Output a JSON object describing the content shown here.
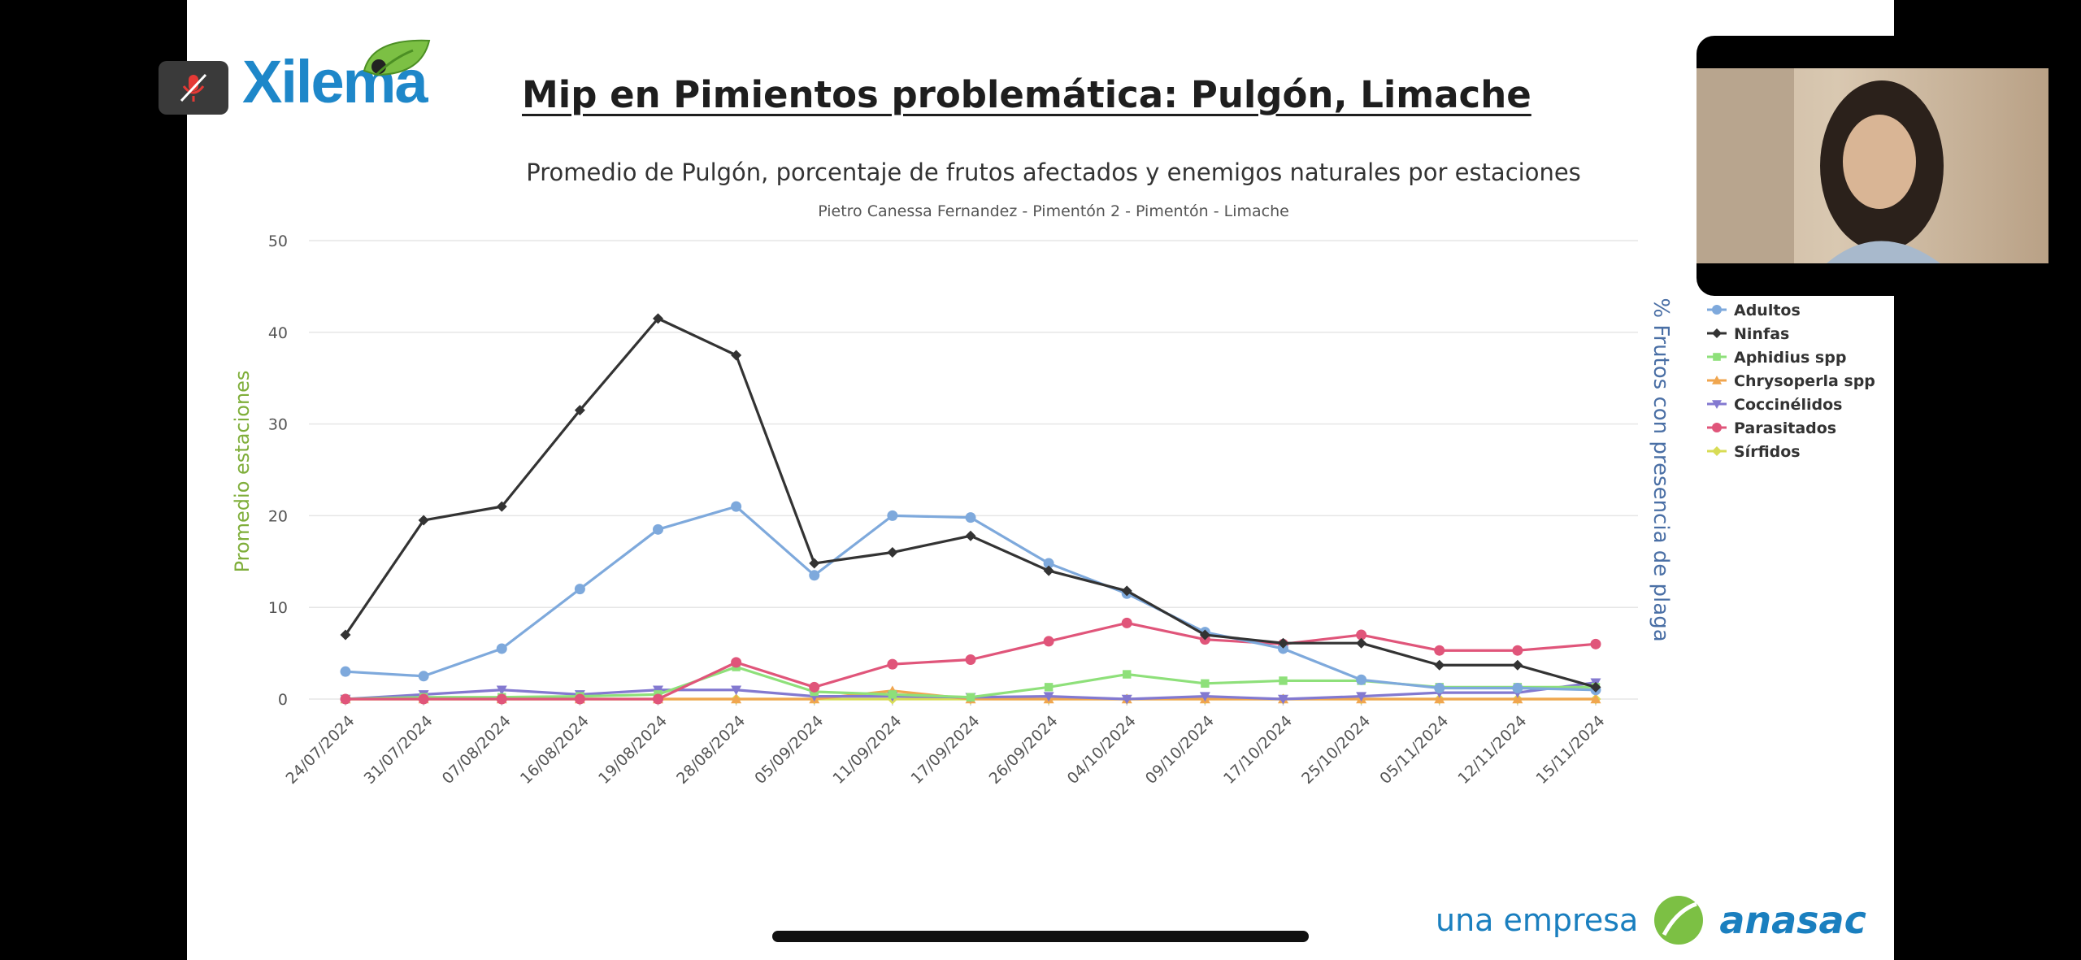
{
  "slide": {
    "title": "Mip en Pimientos problemática: Pulgón, Limache",
    "logo_text": "Xilema",
    "footer_prefix": "una empresa",
    "footer_brand": "anasac"
  },
  "colors": {
    "background": "#000000",
    "slide": "#ffffff",
    "title": "#1e1e1e",
    "logo_blue": "#1e87c9",
    "brand_blue": "#1a7fbf",
    "left_axis_label": "#7fae3a",
    "right_axis_label": "#4a6fa5"
  },
  "icons": {
    "mute": "muted-microphone-icon",
    "logo_leaf": "leaf-icon",
    "brand_leaf": "leaf-icon"
  },
  "chart_data": {
    "type": "line",
    "title": "Promedio de Pulgón, porcentaje de frutos afectados y enemigos naturales por estaciones",
    "subtitle": "Pietro Canessa Fernandez - Pimentón 2 - Pimentón - Limache",
    "ylabel": "Promedio estaciones",
    "y2label": "% Frutos con presencia de plaga",
    "ylim": [
      0,
      50
    ],
    "yticks": [
      0,
      10,
      20,
      30,
      40,
      50
    ],
    "grid": true,
    "legend_position": "right",
    "categories": [
      "24/07/2024",
      "31/07/2024",
      "07/08/2024",
      "16/08/2024",
      "19/08/2024",
      "28/08/2024",
      "05/09/2024",
      "11/09/2024",
      "17/09/2024",
      "26/09/2024",
      "04/10/2024",
      "09/10/2024",
      "17/10/2024",
      "25/10/2024",
      "05/11/2024",
      "12/11/2024",
      "15/11/2024"
    ],
    "series": [
      {
        "name": "Adultos",
        "color": "#7ea9dc",
        "marker": "circle",
        "values": [
          3,
          2.5,
          5.5,
          12,
          18.5,
          21,
          13.5,
          20,
          19.8,
          14.8,
          11.5,
          7.3,
          5.5,
          2.1,
          1.2,
          1.2,
          1.0
        ]
      },
      {
        "name": "Ninfas",
        "color": "#333333",
        "marker": "diamond",
        "values": [
          7,
          19.5,
          21,
          31.5,
          41.5,
          37.5,
          14.8,
          16,
          17.8,
          14,
          11.8,
          7,
          6.1,
          6.1,
          3.7,
          3.7,
          1.3
        ]
      },
      {
        "name": "Aphidius spp",
        "color": "#8ee07a",
        "marker": "square",
        "values": [
          0,
          0.2,
          0.2,
          0.3,
          0.5,
          3.5,
          0.8,
          0.5,
          0.2,
          1.3,
          2.7,
          1.7,
          2,
          2,
          1.3,
          1.3,
          1.3
        ]
      },
      {
        "name": "Chrysoperla spp",
        "color": "#f0a64f",
        "marker": "triangle",
        "values": [
          0,
          0,
          0,
          0,
          0,
          0,
          0,
          0.9,
          0,
          0,
          0,
          0,
          0,
          0,
          0,
          0,
          0
        ]
      },
      {
        "name": "Coccinélidos",
        "color": "#8379d0",
        "marker": "triangle-down",
        "values": [
          0,
          0.5,
          1,
          0.5,
          1,
          1,
          0.3,
          0.3,
          0.2,
          0.3,
          0,
          0.3,
          0,
          0.3,
          0.7,
          0.7,
          1.8
        ]
      },
      {
        "name": "Parasitados",
        "color": "#e0557a",
        "marker": "circle",
        "values": [
          0,
          0,
          0,
          0,
          0,
          4,
          1.3,
          3.8,
          4.3,
          6.3,
          8.3,
          6.5,
          6,
          7,
          5.3,
          5.3,
          6
        ]
      },
      {
        "name": "Sírfidos",
        "color": "#d8dc55",
        "marker": "diamond",
        "values": [
          0,
          0,
          0,
          0,
          0,
          0,
          0,
          0,
          0,
          0,
          0,
          0,
          0,
          0,
          0,
          0,
          0
        ]
      }
    ]
  }
}
